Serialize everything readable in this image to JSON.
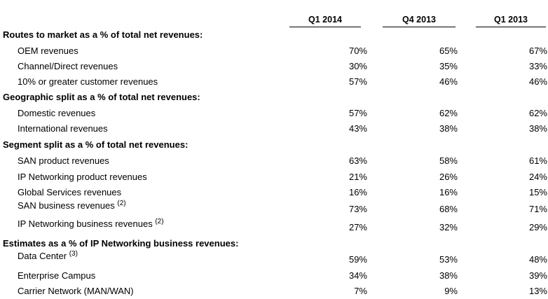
{
  "columns": [
    "Q1 2014",
    "Q4 2013",
    "Q1 2013"
  ],
  "sections": [
    {
      "title": "Routes to market as a % of total net revenues:",
      "rows": [
        {
          "label": "OEM revenues",
          "sup": "",
          "values": [
            "70%",
            "65%",
            "67%"
          ]
        },
        {
          "label": "Channel/Direct revenues",
          "sup": "",
          "values": [
            "30%",
            "35%",
            "33%"
          ]
        },
        {
          "label": "10% or greater customer revenues",
          "sup": "",
          "values": [
            "57%",
            "46%",
            "46%"
          ]
        }
      ]
    },
    {
      "title": "Geographic split as a % of total net revenues:",
      "rows": [
        {
          "label": "Domestic revenues",
          "sup": "",
          "values": [
            "57%",
            "62%",
            "62%"
          ]
        },
        {
          "label": "International revenues",
          "sup": "",
          "values": [
            "43%",
            "38%",
            "38%"
          ]
        }
      ]
    },
    {
      "title": "Segment split as a % of total net revenues:",
      "rows": [
        {
          "label": "SAN product revenues",
          "sup": "",
          "values": [
            "63%",
            "58%",
            "61%"
          ]
        },
        {
          "label": "IP Networking product revenues",
          "sup": "",
          "values": [
            "21%",
            "26%",
            "24%"
          ]
        },
        {
          "label": "Global Services revenues",
          "sup": "",
          "values": [
            "16%",
            "16%",
            "15%"
          ]
        },
        {
          "label": "SAN business revenues ",
          "sup": "(2)",
          "values": [
            "73%",
            "68%",
            "71%"
          ]
        },
        {
          "label": "IP Networking business revenues ",
          "sup": "(2)",
          "values": [
            "27%",
            "32%",
            "29%"
          ]
        }
      ]
    },
    {
      "title": "Estimates as a % of IP Networking business revenues:",
      "rows": [
        {
          "label": "Data Center ",
          "sup": "(3)",
          "values": [
            "59%",
            "53%",
            "48%"
          ]
        },
        {
          "label": "Enterprise Campus",
          "sup": "",
          "values": [
            "34%",
            "38%",
            "39%"
          ]
        },
        {
          "label": "Carrier Network (MAN/WAN)",
          "sup": "",
          "values": [
            "7%",
            "9%",
            "13%"
          ]
        }
      ]
    }
  ]
}
